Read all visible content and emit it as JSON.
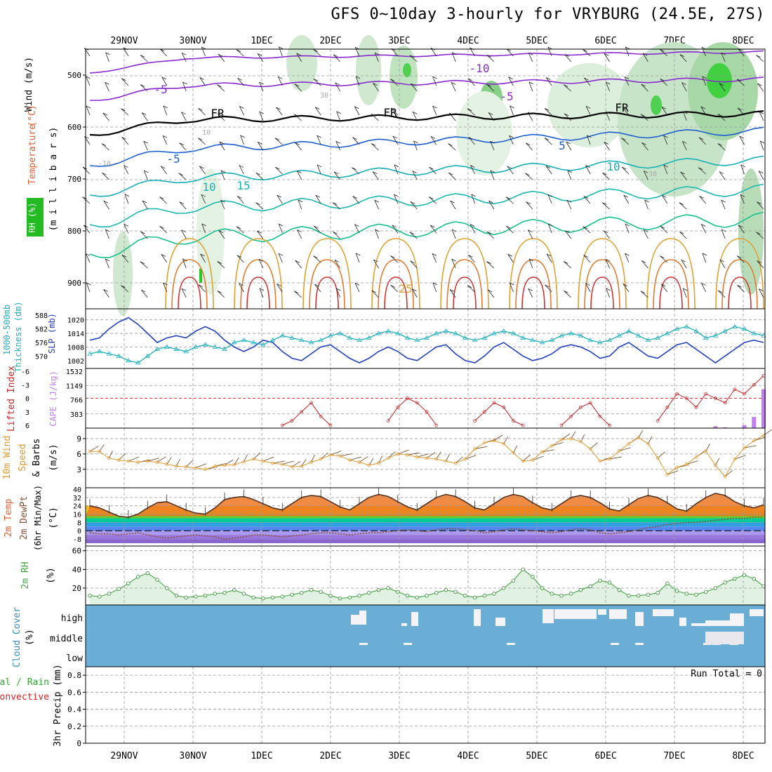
{
  "title": "GFS 0~10day 3-hourly for VRYBURG (24.5E, 27S)",
  "colors": {
    "temperature": "#e06030",
    "wind": "#1f3fbf",
    "rh_green": "#22cc22",
    "fr_line": "#000000",
    "contour_purple": "#8a2bd0",
    "contour_blue": "#1f5fd0",
    "contour_teal": "#18b0b8",
    "contour_orange": "#e0a030",
    "contour_red": "#d03030",
    "lifted": "#cc2222",
    "cape": "#c080f0",
    "wind10": "#e09a30",
    "thickness": "#20b0c0",
    "slp": "#2040c0",
    "rh2m": "#44aa44",
    "cloud": "#6aaed6",
    "precip_total": "#33aa33",
    "precip_conv": "#dd2222"
  },
  "chart_data": [
    {
      "panel": "upper-air",
      "type": "heatmap",
      "ylabel_parts": [
        "Wind",
        "(m/s)",
        "Temperature",
        "(°C)",
        "RH",
        "(%)",
        "(m i l l i b a r s)"
      ],
      "y_ticks": [
        "500",
        "600",
        "700",
        "800",
        "900"
      ],
      "ylim": [
        950,
        450
      ],
      "x_ticks": [
        "29NOV",
        "30NOV",
        "1DEC",
        "2DEC",
        "3DEC",
        "4DEC",
        "5DEC",
        "6DEC",
        "7DEC",
        "8DEC"
      ],
      "contour_labels": [
        "-10",
        "-5",
        "-5",
        "FR",
        "FR",
        "FR",
        "-5",
        "5",
        "10",
        "10",
        "15",
        "25"
      ],
      "rh_labels": [
        "-10",
        "30",
        "10",
        "30"
      ]
    },
    {
      "panel": "thickness-slp",
      "type": "line",
      "ylabel_left": [
        "1000-500mb",
        "Thickness (dm)"
      ],
      "ylabel_right": "SLP (mb)",
      "left_ticks": [
        "588",
        "582",
        "576",
        "570"
      ],
      "right_ticks": [
        "1020",
        "1014",
        "1008",
        "1002"
      ],
      "series": [
        {
          "name": "SLP",
          "values": [
            1011,
            1012,
            1016,
            1019,
            1021,
            1018,
            1014,
            1010,
            1012,
            1013,
            1012,
            1015,
            1017,
            1015,
            1011,
            1008,
            1006,
            1008,
            1011,
            1010,
            1006,
            1003,
            1002,
            1005,
            1008,
            1009,
            1006,
            1003,
            1001,
            1003,
            1006,
            1008,
            1006,
            1003,
            1002,
            1005,
            1008,
            1009,
            1005,
            1002,
            1001,
            1004,
            1008,
            1010,
            1007,
            1004,
            1002,
            1003,
            1005,
            1008,
            1009,
            1008,
            1006,
            1003,
            1004,
            1008,
            1010,
            1007,
            1004,
            1003,
            1006,
            1009,
            1010,
            1007,
            1004,
            1001,
            1004,
            1007,
            1010,
            1011,
            1010
          ]
        },
        {
          "name": "Thickness",
          "values": [
            571,
            572,
            571,
            570,
            568,
            567,
            570,
            573,
            574,
            573,
            572,
            574,
            575,
            574,
            573,
            576,
            577,
            576,
            575,
            577,
            579,
            578,
            577,
            576,
            577,
            579,
            580,
            578,
            577,
            578,
            580,
            581,
            580,
            578,
            577,
            578,
            580,
            581,
            580,
            578,
            577,
            578,
            580,
            581,
            580,
            578,
            577,
            576,
            577,
            579,
            580,
            579,
            577,
            576,
            577,
            579,
            581,
            579,
            577,
            578,
            580,
            582,
            583,
            581,
            578,
            579,
            581,
            583,
            582,
            580,
            579
          ]
        }
      ]
    },
    {
      "panel": "lifted-cape",
      "type": "line",
      "ylabel_left": "Lifted Index",
      "ylabel_right": "CAPE (J/kg)",
      "li_ticks": [
        "-6",
        "-3",
        "0",
        "3",
        "6"
      ],
      "cape_ticks": [
        "1532",
        "1149",
        "766",
        "383"
      ],
      "lifted_index": [
        null,
        null,
        null,
        null,
        null,
        null,
        null,
        null,
        null,
        null,
        null,
        null,
        null,
        null,
        null,
        null,
        null,
        null,
        null,
        null,
        6,
        5,
        3,
        1,
        4,
        6,
        null,
        null,
        null,
        null,
        null,
        5,
        2,
        0,
        1,
        3,
        6,
        null,
        null,
        null,
        5,
        3,
        1,
        2,
        5,
        6,
        null,
        null,
        null,
        6,
        4,
        2,
        1,
        4,
        6,
        null,
        null,
        null,
        null,
        5,
        2,
        -1,
        0,
        2,
        -1,
        0,
        1,
        -2,
        -1,
        -3,
        -5
      ],
      "cape": [
        0,
        0,
        0,
        0,
        0,
        0,
        0,
        0,
        0,
        0,
        0,
        0,
        0,
        0,
        0,
        0,
        0,
        0,
        0,
        0,
        0,
        0,
        0,
        0,
        0,
        0,
        0,
        0,
        0,
        0,
        0,
        0,
        0,
        0,
        0,
        0,
        0,
        0,
        0,
        0,
        0,
        0,
        0,
        0,
        0,
        0,
        0,
        0,
        0,
        0,
        0,
        0,
        0,
        0,
        0,
        0,
        0,
        0,
        0,
        0,
        0,
        0,
        0,
        0,
        0,
        50,
        20,
        0,
        80,
        300,
        1050
      ]
    },
    {
      "panel": "wind10m",
      "type": "line",
      "ylabel": [
        "10m Wind",
        "Speed",
        "& Barbs",
        "(m/s)"
      ],
      "y_ticks": [
        "3",
        "6",
        "9"
      ],
      "series": [
        {
          "name": "Speed",
          "values": [
            6.5,
            6.5,
            5.2,
            4.8,
            4.6,
            4.4,
            4.6,
            4.4,
            4.0,
            3.6,
            3.5,
            3.3,
            3.0,
            3.6,
            3.8,
            3.9,
            4.5,
            5.0,
            4.6,
            4.2,
            4.0,
            3.5,
            3.6,
            4.4,
            5.0,
            5.8,
            5.6,
            4.8,
            4.4,
            3.8,
            4.2,
            5.2,
            6.0,
            5.8,
            5.4,
            5.2,
            5.0,
            4.6,
            4.2,
            5.0,
            7.0,
            8.2,
            8.6,
            8.0,
            6.2,
            4.6,
            4.8,
            6.4,
            7.6,
            8.8,
            9.0,
            8.4,
            7.0,
            4.6,
            5.0,
            6.6,
            8.0,
            9.2,
            8.0,
            5.2,
            2.0,
            3.4,
            4.0,
            5.4,
            6.6,
            3.8,
            1.6,
            5.0,
            7.2,
            8.6,
            9.6
          ]
        }
      ]
    },
    {
      "panel": "temp2m",
      "type": "area",
      "ylabel": [
        "2m Temp",
        "2m DewPt",
        "(6hr Min/Max)",
        "(°C)"
      ],
      "y_ticks": [
        "-8",
        "0",
        "8",
        "16",
        "24",
        "32",
        "40"
      ],
      "series": [
        {
          "name": "2m Temp",
          "values": [
            24,
            22,
            18,
            14,
            13,
            16,
            22,
            27,
            28,
            24,
            20,
            17,
            16,
            22,
            30,
            32,
            33,
            30,
            26,
            22,
            20,
            26,
            32,
            34,
            33,
            28,
            23,
            20,
            26,
            32,
            35,
            33,
            28,
            23,
            20,
            26,
            32,
            35,
            33,
            28,
            22,
            20,
            26,
            32,
            35,
            33,
            27,
            22,
            20,
            26,
            32,
            34,
            32,
            27,
            21,
            19,
            25,
            31,
            34,
            32,
            27,
            21,
            19,
            26,
            32,
            36,
            34,
            28,
            24,
            22,
            25
          ]
        },
        {
          "name": "2m DewPt",
          "values": [
            -2,
            -3,
            -3,
            -4,
            -3,
            -2,
            -4,
            -6,
            -7,
            -6,
            -5,
            -4,
            -5,
            -6,
            -8,
            -7,
            -6,
            -4,
            -4,
            -5,
            -6,
            -5,
            -4,
            -3,
            -2,
            -2,
            -3,
            -4,
            -3,
            -2,
            -2,
            -1,
            0,
            1,
            0,
            -1,
            1,
            2,
            2,
            1,
            0,
            -2,
            -1,
            1,
            2,
            1,
            0,
            -1,
            -2,
            -1,
            1,
            2,
            1,
            -2,
            -3,
            -2,
            -1,
            1,
            3,
            4,
            6,
            7,
            8,
            8,
            9,
            10,
            11,
            12,
            12,
            13,
            13
          ]
        }
      ]
    },
    {
      "panel": "rh2m",
      "type": "area",
      "ylabel": [
        "2m RH",
        "(%)"
      ],
      "y_ticks": [
        "20",
        "40",
        "60"
      ],
      "series": [
        {
          "name": "2m RH",
          "values": [
            12,
            11,
            14,
            19,
            25,
            32,
            36,
            29,
            20,
            12,
            10,
            11,
            12,
            14,
            15,
            18,
            14,
            10,
            9,
            10,
            11,
            13,
            15,
            18,
            16,
            12,
            9,
            10,
            12,
            15,
            18,
            20,
            16,
            12,
            10,
            12,
            15,
            18,
            16,
            12,
            10,
            12,
            14,
            20,
            28,
            40,
            32,
            20,
            14,
            12,
            14,
            18,
            22,
            28,
            26,
            18,
            12,
            12,
            13,
            15,
            25,
            17,
            14,
            13,
            16,
            20,
            26,
            30,
            34,
            30,
            22
          ]
        }
      ]
    },
    {
      "panel": "cloud",
      "type": "bar",
      "ylabel": [
        "Cloud Cover",
        "(%)"
      ],
      "levels": [
        "high",
        "middle",
        "low"
      ]
    },
    {
      "panel": "precip",
      "type": "bar",
      "ylabel": [
        "Total / Rain",
        "Convective",
        "3hr Precip (mm)"
      ],
      "y_ticks": [
        "0",
        "0.2",
        "0.4",
        "0.6",
        "0.8"
      ],
      "annotation": "Run Total = 0",
      "x_ticks": [
        "29NOV",
        "30NOV",
        "1DEC",
        "2DEC",
        "3DEC",
        "4DEC",
        "5DEC",
        "6DEC",
        "7DEC",
        "8DEC"
      ]
    }
  ]
}
